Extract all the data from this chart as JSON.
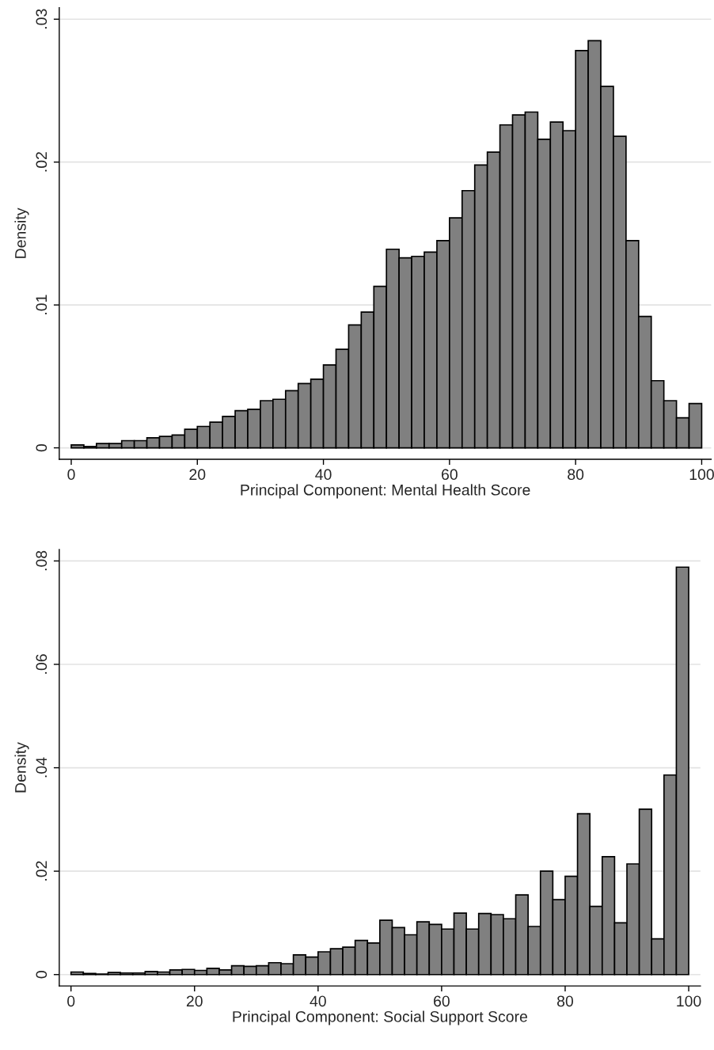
{
  "chart_data": [
    {
      "type": "histogram",
      "xlabel": "Principal Component: Mental Health Score",
      "ylabel": "Density",
      "bins": [
        0,
        2,
        4,
        6,
        8,
        10,
        12,
        14,
        16,
        18,
        20,
        22,
        24,
        26,
        28,
        30,
        32,
        34,
        36,
        38,
        40,
        42,
        44,
        46,
        48,
        50,
        52,
        54,
        56,
        58,
        60,
        62,
        64,
        66,
        68,
        70,
        72,
        74,
        76,
        78,
        80,
        82,
        84,
        86,
        88,
        90,
        92,
        94,
        96,
        98,
        100
      ],
      "values": [
        0.0002,
        0.0001,
        0.0003,
        0.0003,
        0.0005,
        0.0005,
        0.0007,
        0.0008,
        0.0009,
        0.0013,
        0.0015,
        0.0018,
        0.0022,
        0.0026,
        0.0027,
        0.0033,
        0.0034,
        0.004,
        0.0045,
        0.0048,
        0.0058,
        0.0069,
        0.0086,
        0.0095,
        0.0113,
        0.0139,
        0.0133,
        0.0134,
        0.0137,
        0.0145,
        0.0161,
        0.018,
        0.0198,
        0.0207,
        0.0226,
        0.0233,
        0.0235,
        0.0216,
        0.0228,
        0.0222,
        0.0278,
        0.0285,
        0.0253,
        0.0218,
        0.0145,
        0.0092,
        0.0047,
        0.0033,
        0.0021,
        0.0031
      ],
      "color": "#808080",
      "xlim": [
        -1.9,
        101.5
      ],
      "ylim": [
        -0.0008,
        0.0308
      ],
      "xticks": [
        0,
        20,
        40,
        60,
        80,
        100
      ],
      "yticks": [
        0,
        {
          "value": 0.01,
          "label": ".01"
        },
        {
          "value": 0.02,
          "label": ".02"
        },
        {
          "value": 0.03,
          "label": ".03"
        }
      ],
      "grid": "y"
    },
    {
      "type": "histogram",
      "xlabel": "Principal Component: Social Support Score",
      "ylabel": "Density",
      "bins": [
        0,
        2,
        4,
        6,
        8,
        10,
        12,
        14,
        16,
        18,
        20,
        22,
        24,
        26,
        28,
        30,
        32,
        34,
        36,
        38,
        40,
        42,
        44,
        46,
        48,
        50,
        52,
        54,
        56,
        58,
        60,
        62,
        64,
        66,
        68,
        70,
        72,
        74,
        76,
        78,
        80,
        82,
        84,
        86,
        88,
        90,
        92,
        94,
        96,
        98,
        100
      ],
      "values": [
        0.0005,
        0.0002,
        0.0001,
        0.0004,
        0.0003,
        0.0003,
        0.0006,
        0.0005,
        0.0009,
        0.001,
        0.0008,
        0.0012,
        0.0009,
        0.0017,
        0.0016,
        0.0017,
        0.0023,
        0.0021,
        0.0038,
        0.0034,
        0.0044,
        0.005,
        0.0053,
        0.0066,
        0.0061,
        0.0105,
        0.0091,
        0.0077,
        0.0102,
        0.0097,
        0.0088,
        0.0119,
        0.0088,
        0.0118,
        0.0116,
        0.0108,
        0.0154,
        0.0093,
        0.02,
        0.0145,
        0.019,
        0.0311,
        0.0132,
        0.0228,
        0.01,
        0.0214,
        0.032,
        0.0069,
        0.0386,
        0.0788
      ],
      "color": "#808080",
      "xlim": [
        -1.9,
        101.9
      ],
      "ylim": [
        -0.0022,
        0.0822
      ],
      "xticks": [
        0,
        20,
        40,
        60,
        80,
        100
      ],
      "yticks": [
        0,
        {
          "value": 0.02,
          "label": ".02"
        },
        {
          "value": 0.04,
          "label": ".04"
        },
        {
          "value": 0.06,
          "label": ".06"
        },
        {
          "value": 0.08,
          "label": ".08"
        }
      ],
      "grid": "y"
    }
  ]
}
